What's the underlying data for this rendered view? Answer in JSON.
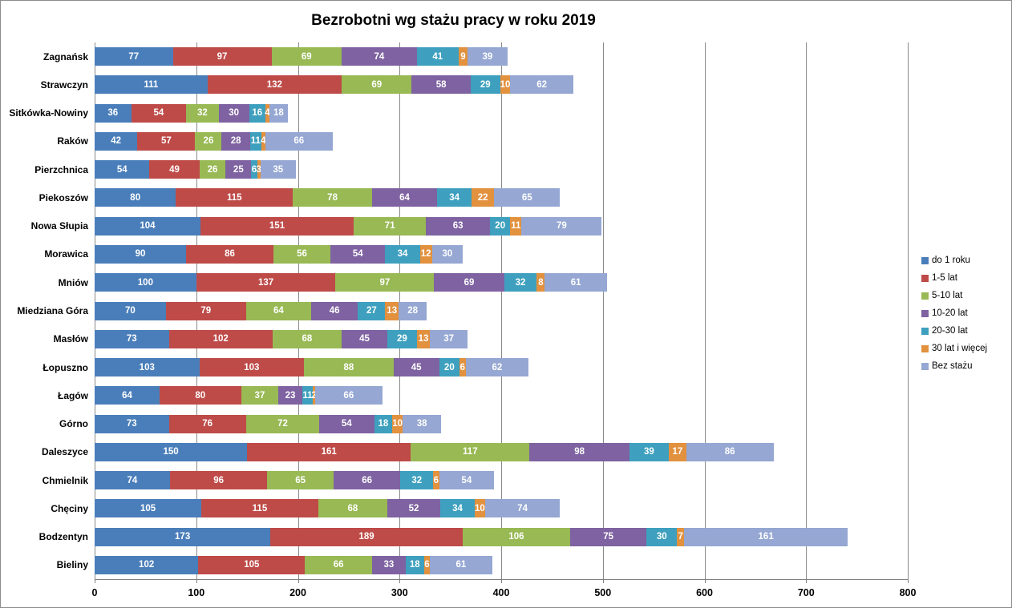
{
  "title": "Bezrobotni wg stażu pracy w roku 2019",
  "chart_data": {
    "type": "bar",
    "orientation": "horizontal_stacked",
    "title": "Bezrobotni wg stażu pracy w roku 2019",
    "categories": [
      "Zagnańsk",
      "Strawczyn",
      "Sitkówka-Nowiny",
      "Raków",
      "Pierzchnica",
      "Piekoszów",
      "Nowa Słupia",
      "Morawica",
      "Mniów",
      "Miedziana Góra",
      "Masłów",
      "Łopuszno",
      "Łagów",
      "Górno",
      "Daleszyce",
      "Chmielnik",
      "Chęciny",
      "Bodzentyn",
      "Bieliny"
    ],
    "series": [
      {
        "name": "do 1 roku",
        "color": "#4A7EBA",
        "values": [
          77,
          111,
          36,
          42,
          54,
          80,
          104,
          90,
          100,
          70,
          73,
          103,
          64,
          73,
          150,
          74,
          105,
          173,
          102
        ]
      },
      {
        "name": "1-5 lat",
        "color": "#BE4B48",
        "values": [
          97,
          132,
          54,
          57,
          49,
          115,
          151,
          86,
          137,
          79,
          102,
          103,
          80,
          76,
          161,
          96,
          115,
          189,
          105
        ]
      },
      {
        "name": "5-10 lat",
        "color": "#98B954",
        "values": [
          69,
          69,
          32,
          26,
          26,
          78,
          71,
          56,
          97,
          64,
          68,
          88,
          37,
          72,
          117,
          65,
          68,
          106,
          66
        ]
      },
      {
        "name": "10-20 lat",
        "color": "#7E62A1",
        "values": [
          74,
          58,
          30,
          28,
          25,
          64,
          63,
          54,
          69,
          46,
          45,
          45,
          23,
          54,
          98,
          66,
          52,
          75,
          33
        ]
      },
      {
        "name": "20-30 lat",
        "color": "#3EA0BE",
        "values": [
          41,
          29,
          16,
          11,
          6,
          34,
          20,
          34,
          32,
          27,
          29,
          20,
          11,
          18,
          39,
          32,
          34,
          30,
          18
        ]
      },
      {
        "name": "30 lat i więcej",
        "color": "#E2913E",
        "values": [
          9,
          10,
          4,
          4,
          3,
          22,
          11,
          12,
          8,
          13,
          13,
          6,
          2,
          10,
          17,
          6,
          10,
          7,
          6
        ]
      },
      {
        "name": "Bez stażu",
        "color": "#95A7D2",
        "values": [
          39,
          62,
          18,
          66,
          35,
          65,
          79,
          30,
          61,
          28,
          37,
          62,
          66,
          38,
          86,
          54,
          74,
          161,
          61
        ]
      }
    ],
    "xlim": [
      0,
      800
    ],
    "x_ticks": [
      0,
      100,
      200,
      300,
      400,
      500,
      600,
      700,
      800
    ],
    "grid": "vertical",
    "grid_color": "#8a8a8a",
    "legend_position": "right",
    "value_label_color": "#FFFFFF"
  }
}
